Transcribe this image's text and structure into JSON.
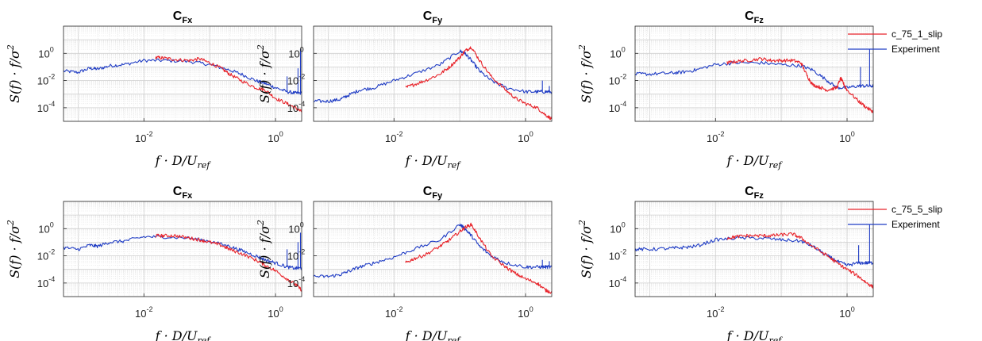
{
  "chart_data": [
    {
      "type": "line",
      "row": 1,
      "col": 1,
      "title": "C",
      "title_sub": "Fx",
      "xscale": "log",
      "yscale": "log",
      "xlim": [
        0.0006,
        2.5
      ],
      "ylim": [
        1e-05,
        100
      ],
      "xticks": [
        {
          "base": "10",
          "exp": "-2",
          "value": 0.01
        },
        {
          "base": "10",
          "exp": "0",
          "value": 1
        }
      ],
      "yticks": [
        {
          "base": "10",
          "exp": "0",
          "value": 1
        },
        {
          "base": "10",
          "exp": "-2",
          "value": 0.01
        },
        {
          "base": "10",
          "exp": "-4",
          "value": 0.0001
        }
      ],
      "xlabel": "f · D/U",
      "xlabel_sub": "ref",
      "ylabel": "S(f) · f/σ",
      "ylabel_sup": "2",
      "grid": true,
      "minor_grid": true,
      "series": [
        {
          "color": "#e8232a",
          "x": [
            0.015,
            0.02,
            0.03,
            0.05,
            0.07,
            0.1,
            0.15,
            0.2,
            0.3,
            0.5,
            0.7,
            1.0,
            1.5,
            2.0,
            2.5
          ],
          "y": [
            0.5,
            0.45,
            0.35,
            0.3,
            0.4,
            0.2,
            0.08,
            0.03,
            0.01,
            0.003,
            0.002,
            0.0005,
            0.0002,
            0.0001,
            5e-05
          ]
        },
        {
          "color": "#1f3cc4",
          "x": [
            0.0006,
            0.001,
            0.0015,
            0.002,
            0.003,
            0.005,
            0.01,
            0.02,
            0.05,
            0.1,
            0.2,
            0.3,
            0.5,
            0.7,
            1.0,
            1.5,
            2.0,
            2.5
          ],
          "y": [
            0.05,
            0.04,
            0.08,
            0.07,
            0.12,
            0.15,
            0.3,
            0.3,
            0.25,
            0.15,
            0.06,
            0.03,
            0.01,
            0.006,
            0.003,
            0.0015,
            0.0012,
            0.0012
          ],
          "spikes": [
            [
              1.5,
              0.02
            ],
            [
              2.2,
              0.08
            ],
            [
              2.4,
              2.0
            ]
          ]
        }
      ]
    },
    {
      "type": "line",
      "row": 1,
      "col": 2,
      "title": "C",
      "title_sub": "Fy",
      "xscale": "log",
      "yscale": "log",
      "xlim": [
        0.0006,
        2.5
      ],
      "ylim": [
        1e-05,
        100
      ],
      "xticks": [
        {
          "base": "10",
          "exp": "-2",
          "value": 0.01
        },
        {
          "base": "10",
          "exp": "0",
          "value": 1
        }
      ],
      "yticks": [
        {
          "base": "10",
          "exp": "0",
          "value": 1
        },
        {
          "base": "10",
          "exp": "-2",
          "value": 0.01
        },
        {
          "base": "10",
          "exp": "-4",
          "value": 0.0001
        }
      ],
      "xlabel": "f · D/U",
      "xlabel_sub": "ref",
      "ylabel": "S(f) · f/σ",
      "ylabel_sup": "2",
      "grid": true,
      "minor_grid": true,
      "series": [
        {
          "color": "#e8232a",
          "x": [
            0.015,
            0.02,
            0.03,
            0.05,
            0.07,
            0.1,
            0.12,
            0.15,
            0.2,
            0.3,
            0.5,
            0.7,
            1.0,
            1.5,
            2.0,
            2.5
          ],
          "y": [
            0.003,
            0.005,
            0.01,
            0.03,
            0.1,
            0.5,
            1.5,
            3.0,
            0.3,
            0.02,
            0.002,
            0.0005,
            0.0002,
            0.0001,
            3e-05,
            1.5e-05
          ]
        },
        {
          "color": "#1f3cc4",
          "x": [
            0.0006,
            0.001,
            0.0015,
            0.002,
            0.003,
            0.005,
            0.01,
            0.02,
            0.05,
            0.1,
            0.12,
            0.15,
            0.2,
            0.3,
            0.5,
            1.0,
            1.5,
            2.0,
            2.5
          ],
          "y": [
            0.0003,
            0.0003,
            0.0004,
            0.0008,
            0.002,
            0.003,
            0.01,
            0.03,
            0.15,
            1.5,
            1.0,
            0.3,
            0.05,
            0.01,
            0.003,
            0.0015,
            0.0015,
            0.0015,
            0.0015
          ],
          "spikes": [
            [
              1.8,
              0.01
            ],
            [
              2.3,
              0.004
            ]
          ]
        }
      ]
    },
    {
      "type": "line",
      "row": 1,
      "col": 3,
      "title": "C",
      "title_sub": "Fz",
      "xscale": "log",
      "yscale": "log",
      "xlim": [
        0.0006,
        2.5
      ],
      "ylim": [
        1e-05,
        100
      ],
      "xticks": [
        {
          "base": "10",
          "exp": "-2",
          "value": 0.01
        },
        {
          "base": "10",
          "exp": "0",
          "value": 1
        }
      ],
      "yticks": [
        {
          "base": "10",
          "exp": "0",
          "value": 1
        },
        {
          "base": "10",
          "exp": "-2",
          "value": 0.01
        },
        {
          "base": "10",
          "exp": "-4",
          "value": 0.0001
        }
      ],
      "xlabel": "f · D/U",
      "xlabel_sub": "ref",
      "ylabel": "S(f) · f/σ",
      "ylabel_sup": "2",
      "grid": true,
      "minor_grid": true,
      "series": [
        {
          "color": "#e8232a",
          "x": [
            0.015,
            0.02,
            0.03,
            0.05,
            0.07,
            0.1,
            0.15,
            0.2,
            0.25,
            0.3,
            0.4,
            0.5,
            0.7,
            0.8,
            0.9,
            1.0,
            1.5,
            2.0,
            2.5
          ],
          "y": [
            0.2,
            0.25,
            0.3,
            0.4,
            0.3,
            0.3,
            0.3,
            0.2,
            0.02,
            0.005,
            0.003,
            0.002,
            0.003,
            0.015,
            0.005,
            0.002,
            0.0003,
            0.0001,
            5e-05
          ]
        },
        {
          "color": "#1f3cc4",
          "x": [
            0.0006,
            0.001,
            0.002,
            0.003,
            0.005,
            0.01,
            0.02,
            0.05,
            0.1,
            0.2,
            0.3,
            0.5,
            0.7,
            1.0,
            1.5,
            2.0,
            2.5
          ],
          "y": [
            0.03,
            0.03,
            0.035,
            0.04,
            0.06,
            0.15,
            0.2,
            0.2,
            0.15,
            0.12,
            0.06,
            0.01,
            0.003,
            0.003,
            0.004,
            0.004,
            0.004
          ],
          "spikes": [
            [
              1.6,
              0.1
            ],
            [
              2.2,
              2.0
            ]
          ]
        }
      ]
    },
    {
      "type": "line",
      "row": 2,
      "col": 1,
      "title": "C",
      "title_sub": "Fx",
      "xscale": "log",
      "yscale": "log",
      "xlim": [
        0.0006,
        2.5
      ],
      "ylim": [
        1e-05,
        100
      ],
      "xticks": [
        {
          "base": "10",
          "exp": "-2",
          "value": 0.01
        },
        {
          "base": "10",
          "exp": "0",
          "value": 1
        }
      ],
      "yticks": [
        {
          "base": "10",
          "exp": "0",
          "value": 1
        },
        {
          "base": "10",
          "exp": "-2",
          "value": 0.01
        },
        {
          "base": "10",
          "exp": "-4",
          "value": 0.0001
        }
      ],
      "xlabel": "f · D/U",
      "xlabel_sub": "ref",
      "ylabel": "S(f) · f/σ",
      "ylabel_sup": "2",
      "grid": true,
      "minor_grid": true,
      "series": [
        {
          "color": "#e8232a",
          "x": [
            0.015,
            0.02,
            0.03,
            0.05,
            0.07,
            0.1,
            0.15,
            0.2,
            0.3,
            0.5,
            0.7,
            1.0,
            1.5,
            2.0,
            2.5
          ],
          "y": [
            0.3,
            0.3,
            0.3,
            0.2,
            0.15,
            0.1,
            0.06,
            0.03,
            0.015,
            0.005,
            0.002,
            0.0008,
            0.0002,
            8e-05,
            3e-05
          ]
        },
        {
          "color": "#1f3cc4",
          "x": [
            0.0006,
            0.001,
            0.0015,
            0.002,
            0.003,
            0.005,
            0.01,
            0.02,
            0.05,
            0.1,
            0.2,
            0.3,
            0.5,
            0.7,
            1.0,
            1.5,
            2.0,
            2.5
          ],
          "y": [
            0.04,
            0.03,
            0.06,
            0.05,
            0.1,
            0.12,
            0.25,
            0.25,
            0.2,
            0.12,
            0.05,
            0.025,
            0.01,
            0.005,
            0.003,
            0.0015,
            0.0012,
            0.0012
          ],
          "spikes": [
            [
              1.5,
              0.03
            ],
            [
              2.2,
              0.1
            ],
            [
              2.4,
              0.5
            ]
          ]
        }
      ]
    },
    {
      "type": "line",
      "row": 2,
      "col": 2,
      "title": "C",
      "title_sub": "Fy",
      "xscale": "log",
      "yscale": "log",
      "xlim": [
        0.0006,
        2.5
      ],
      "ylim": [
        1e-05,
        100
      ],
      "xticks": [
        {
          "base": "10",
          "exp": "-2",
          "value": 0.01
        },
        {
          "base": "10",
          "exp": "0",
          "value": 1
        }
      ],
      "yticks": [
        {
          "base": "10",
          "exp": "0",
          "value": 1
        },
        {
          "base": "10",
          "exp": "-2",
          "value": 0.01
        },
        {
          "base": "10",
          "exp": "-4",
          "value": 0.0001
        }
      ],
      "xlabel": "f · D/U",
      "xlabel_sub": "ref",
      "ylabel": "S(f) · f/σ",
      "ylabel_sup": "2",
      "grid": true,
      "minor_grid": true,
      "series": [
        {
          "color": "#e8232a",
          "x": [
            0.015,
            0.02,
            0.03,
            0.05,
            0.07,
            0.1,
            0.12,
            0.15,
            0.2,
            0.3,
            0.5,
            0.7,
            1.0,
            1.5,
            2.0,
            2.5
          ],
          "y": [
            0.003,
            0.006,
            0.012,
            0.05,
            0.15,
            0.6,
            1.2,
            2.0,
            0.2,
            0.01,
            0.0015,
            0.0005,
            0.0002,
            0.0001,
            3e-05,
            2e-05
          ]
        },
        {
          "color": "#1f3cc4",
          "x": [
            0.0006,
            0.001,
            0.0015,
            0.002,
            0.003,
            0.005,
            0.01,
            0.02,
            0.05,
            0.1,
            0.12,
            0.15,
            0.2,
            0.3,
            0.5,
            1.0,
            1.5,
            2.0,
            2.5
          ],
          "y": [
            0.0003,
            0.0003,
            0.0004,
            0.0007,
            0.0015,
            0.003,
            0.008,
            0.03,
            0.15,
            2.0,
            1.0,
            0.3,
            0.05,
            0.01,
            0.003,
            0.0015,
            0.0015,
            0.0015,
            0.0015
          ],
          "spikes": [
            [
              1.8,
              0.005
            ],
            [
              2.3,
              0.004
            ]
          ]
        }
      ]
    },
    {
      "type": "line",
      "row": 2,
      "col": 3,
      "title": "C",
      "title_sub": "Fz",
      "xscale": "log",
      "yscale": "log",
      "xlim": [
        0.0006,
        2.5
      ],
      "ylim": [
        1e-05,
        100
      ],
      "xticks": [
        {
          "base": "10",
          "exp": "-2",
          "value": 0.01
        },
        {
          "base": "10",
          "exp": "0",
          "value": 1
        }
      ],
      "yticks": [
        {
          "base": "10",
          "exp": "0",
          "value": 1
        },
        {
          "base": "10",
          "exp": "-2",
          "value": 0.01
        },
        {
          "base": "10",
          "exp": "-4",
          "value": 0.0001
        }
      ],
      "xlabel": "f · D/U",
      "xlabel_sub": "ref",
      "ylabel": "S(f) · f/σ",
      "ylabel_sup": "2",
      "grid": true,
      "minor_grid": true,
      "series": [
        {
          "color": "#e8232a",
          "x": [
            0.015,
            0.02,
            0.03,
            0.05,
            0.07,
            0.1,
            0.15,
            0.2,
            0.3,
            0.5,
            0.7,
            1.0,
            1.5,
            2.0,
            2.5
          ],
          "y": [
            0.2,
            0.25,
            0.3,
            0.3,
            0.3,
            0.35,
            0.4,
            0.2,
            0.05,
            0.01,
            0.003,
            0.001,
            0.0003,
            0.0001,
            5e-05
          ]
        },
        {
          "color": "#1f3cc4",
          "x": [
            0.0006,
            0.001,
            0.002,
            0.003,
            0.005,
            0.01,
            0.02,
            0.05,
            0.1,
            0.2,
            0.3,
            0.5,
            0.7,
            1.0,
            1.5,
            2.0,
            2.5
          ],
          "y": [
            0.03,
            0.03,
            0.035,
            0.04,
            0.05,
            0.15,
            0.2,
            0.2,
            0.15,
            0.12,
            0.05,
            0.01,
            0.004,
            0.002,
            0.003,
            0.003,
            0.003
          ],
          "spikes": [
            [
              1.5,
              0.06
            ],
            [
              2.2,
              2.0
            ]
          ]
        }
      ]
    }
  ],
  "legends": [
    {
      "row": 1,
      "entries": [
        {
          "label": "c_75_1_slip",
          "color": "#e8232a"
        },
        {
          "label": "Experiment",
          "color": "#1f3cc4"
        }
      ]
    },
    {
      "row": 2,
      "entries": [
        {
          "label": "c_75_5_slip",
          "color": "#e8232a"
        },
        {
          "label": "Experiment",
          "color": "#1f3cc4"
        }
      ]
    }
  ]
}
